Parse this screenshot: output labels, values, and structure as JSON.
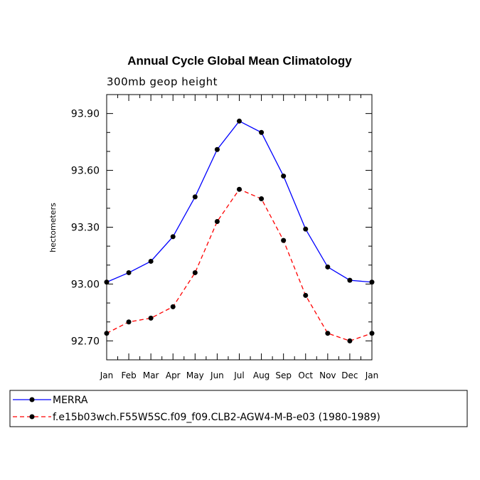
{
  "chart_data": {
    "type": "line",
    "title": "Annual Cycle Global Mean Climatology",
    "subtitle": "300mb geop height",
    "ylabel": "hectometers",
    "xlabel": "",
    "categories": [
      "Jan",
      "Feb",
      "Mar",
      "Apr",
      "May",
      "Jun",
      "Jul",
      "Aug",
      "Sep",
      "Oct",
      "Nov",
      "Dec",
      "Jan"
    ],
    "ylim": [
      92.6,
      94.0
    ],
    "yticks": [
      92.7,
      93.0,
      93.3,
      93.6,
      93.9
    ],
    "ytick_labels": [
      "92.70",
      "93.00",
      "93.30",
      "93.60",
      "93.90"
    ],
    "series": [
      {
        "name": "MERRA",
        "color": "#0000ff",
        "dash": "solid",
        "values": [
          93.01,
          93.06,
          93.12,
          93.25,
          93.46,
          93.71,
          93.86,
          93.8,
          93.57,
          93.29,
          93.09,
          93.02,
          93.01
        ]
      },
      {
        "name": "f.e15b03wch.F55W5SC.f09_f09.CLB2-AGW4-M-B-e03 (1980-1989)",
        "color": "#ff0000",
        "dash": "dashed",
        "values": [
          92.74,
          92.8,
          92.82,
          92.88,
          93.06,
          93.33,
          93.5,
          93.45,
          93.23,
          92.94,
          92.74,
          92.7,
          92.74
        ]
      }
    ],
    "legend_position": "bottom-left",
    "grid": false
  }
}
